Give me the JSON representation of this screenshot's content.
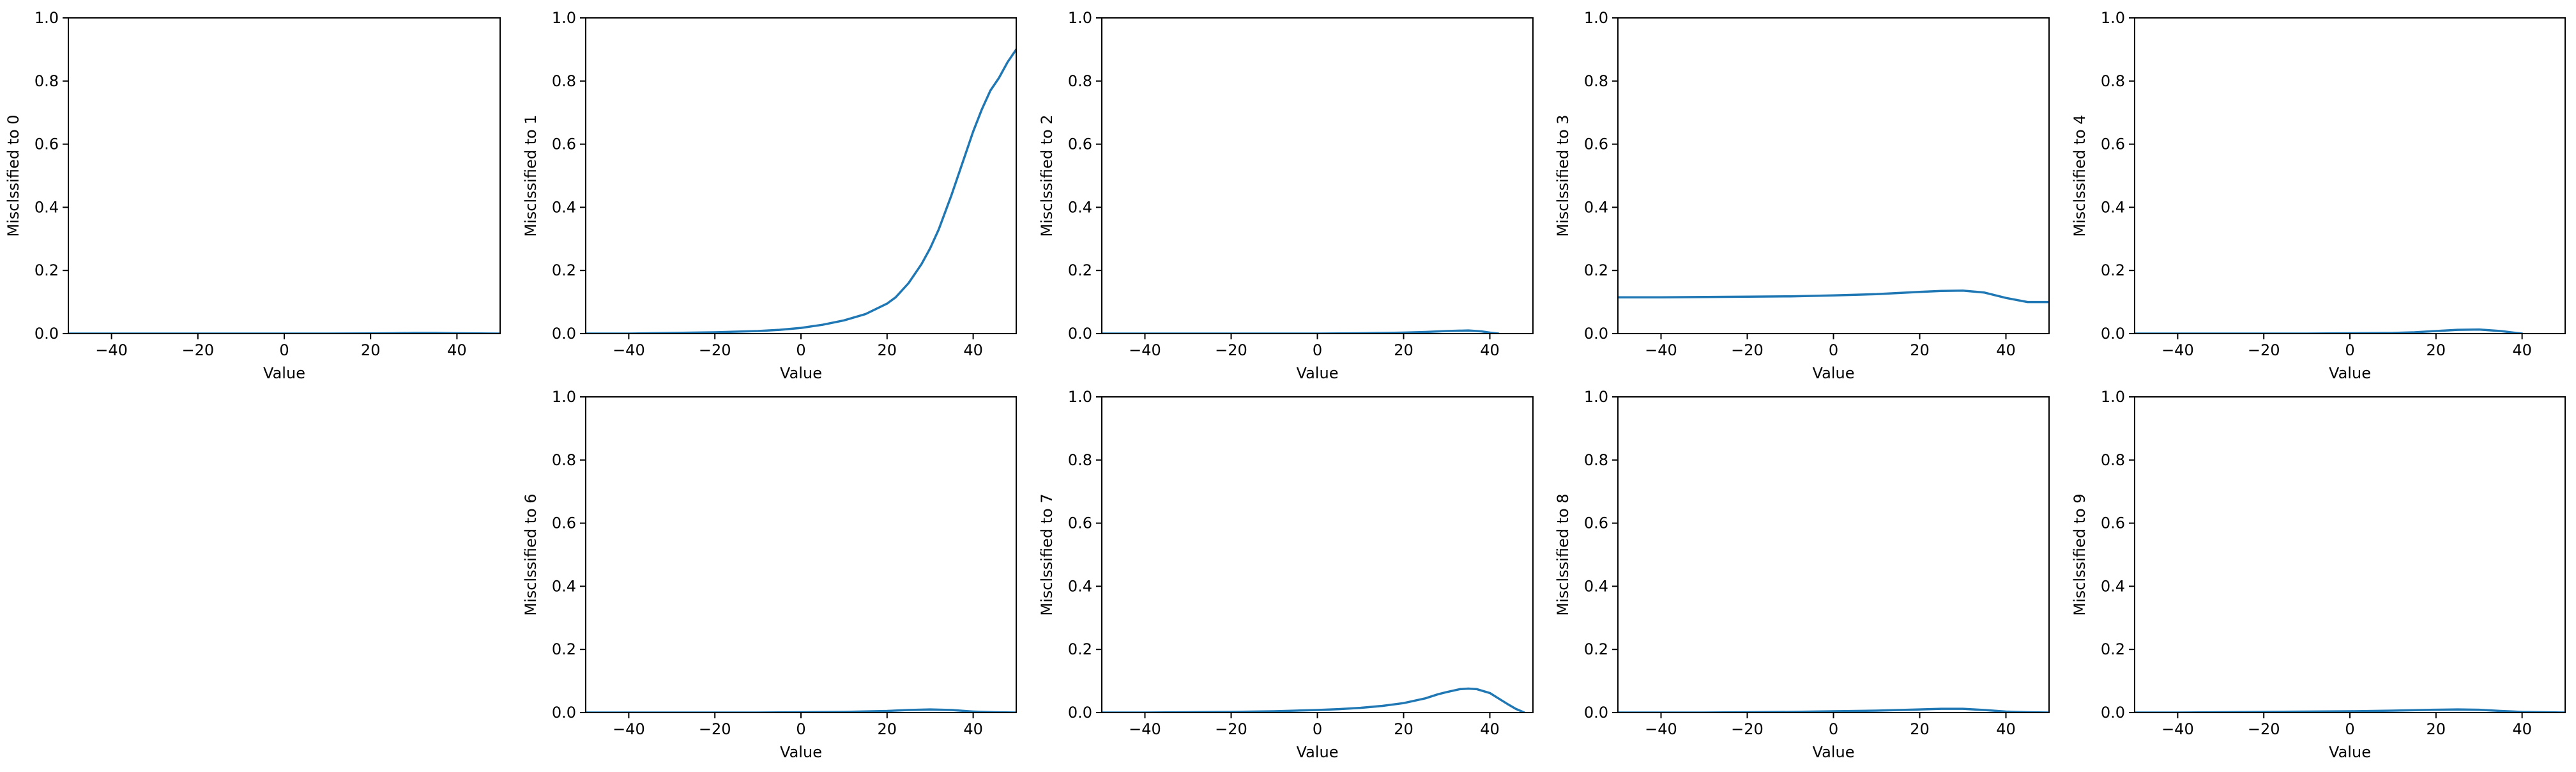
{
  "colors": {
    "series": "#1f77b4",
    "axes": "#000000",
    "background": "#ffffff"
  },
  "chart_data": [
    {
      "type": "line",
      "xlabel": "Value",
      "ylabel": "Misclssified to 0",
      "xlim": [
        -50,
        50
      ],
      "ylim": [
        0,
        1
      ],
      "xticks": [
        -40,
        -20,
        0,
        20,
        40
      ],
      "yticks": [
        0.0,
        0.2,
        0.4,
        0.6,
        0.8,
        1.0
      ],
      "x": [
        -50,
        -40,
        -30,
        -20,
        -10,
        0,
        10,
        20,
        25,
        30,
        35,
        40,
        45,
        50
      ],
      "y": [
        0.0,
        0.0,
        0.0,
        0.0,
        0.0,
        0.0,
        0.0,
        0.0005,
        0.001,
        0.002,
        0.002,
        0.001,
        0.0005,
        0.0
      ]
    },
    {
      "type": "line",
      "xlabel": "Value",
      "ylabel": "Misclssified to 1",
      "xlim": [
        -50,
        50
      ],
      "ylim": [
        0,
        1
      ],
      "xticks": [
        -40,
        -20,
        0,
        20,
        40
      ],
      "yticks": [
        0.0,
        0.2,
        0.4,
        0.6,
        0.8,
        1.0
      ],
      "x": [
        -50,
        -40,
        -30,
        -20,
        -10,
        -5,
        0,
        5,
        10,
        15,
        20,
        22,
        25,
        28,
        30,
        32,
        35,
        38,
        40,
        42,
        44,
        46,
        48,
        50
      ],
      "y": [
        0.0,
        0.0,
        0.002,
        0.004,
        0.008,
        0.012,
        0.018,
        0.028,
        0.042,
        0.062,
        0.095,
        0.115,
        0.16,
        0.22,
        0.27,
        0.33,
        0.44,
        0.56,
        0.64,
        0.71,
        0.77,
        0.81,
        0.86,
        0.9
      ]
    },
    {
      "type": "line",
      "xlabel": "Value",
      "ylabel": "Misclssified to 2",
      "xlim": [
        -50,
        50
      ],
      "ylim": [
        0,
        1
      ],
      "xticks": [
        -40,
        -20,
        0,
        20,
        40
      ],
      "yticks": [
        0.0,
        0.2,
        0.4,
        0.6,
        0.8,
        1.0
      ],
      "x": [
        -50,
        -40,
        -30,
        -20,
        -10,
        0,
        10,
        20,
        25,
        30,
        35,
        38,
        40,
        42
      ],
      "y": [
        0.0,
        0.0,
        0.0,
        0.0,
        0.0,
        0.0,
        0.001,
        0.003,
        0.005,
        0.008,
        0.01,
        0.007,
        0.003,
        0.0
      ]
    },
    {
      "type": "line",
      "xlabel": "Value",
      "ylabel": "Misclssified to 3",
      "xlim": [
        -50,
        50
      ],
      "ylim": [
        0,
        1
      ],
      "xticks": [
        -40,
        -20,
        0,
        20,
        40
      ],
      "yticks": [
        0.0,
        0.2,
        0.4,
        0.6,
        0.8,
        1.0
      ],
      "x": [
        -50,
        -40,
        -30,
        -20,
        -10,
        0,
        10,
        20,
        25,
        30,
        35,
        40,
        45,
        50
      ],
      "y": [
        0.115,
        0.115,
        0.116,
        0.117,
        0.118,
        0.121,
        0.125,
        0.132,
        0.135,
        0.136,
        0.13,
        0.113,
        0.1,
        0.1
      ]
    },
    {
      "type": "line",
      "xlabel": "Value",
      "ylabel": "Misclssified to 4",
      "xlim": [
        -50,
        50
      ],
      "ylim": [
        0,
        1
      ],
      "xticks": [
        -40,
        -20,
        0,
        20,
        40
      ],
      "yticks": [
        0.0,
        0.2,
        0.4,
        0.6,
        0.8,
        1.0
      ],
      "x": [
        -50,
        -40,
        -30,
        -20,
        -10,
        0,
        10,
        15,
        20,
        25,
        30,
        35,
        38,
        40
      ],
      "y": [
        0.0,
        0.0,
        0.0,
        0.0,
        0.0,
        0.001,
        0.002,
        0.004,
        0.008,
        0.012,
        0.013,
        0.008,
        0.003,
        0.0
      ]
    },
    {
      "type": "line",
      "xlabel": "Value",
      "ylabel": "Misclssified to 6",
      "xlim": [
        -50,
        50
      ],
      "ylim": [
        0,
        1
      ],
      "xticks": [
        -40,
        -20,
        0,
        20,
        40
      ],
      "yticks": [
        0.0,
        0.2,
        0.4,
        0.6,
        0.8,
        1.0
      ],
      "x": [
        -50,
        -40,
        -30,
        -20,
        -10,
        0,
        10,
        20,
        25,
        30,
        35,
        40,
        45,
        50
      ],
      "y": [
        0.0,
        0.0,
        0.0,
        0.0,
        0.0,
        0.001,
        0.002,
        0.005,
        0.008,
        0.01,
        0.008,
        0.003,
        0.001,
        0.0
      ]
    },
    {
      "type": "line",
      "xlabel": "Value",
      "ylabel": "Misclssified to 7",
      "xlim": [
        -50,
        50
      ],
      "ylim": [
        0,
        1
      ],
      "xticks": [
        -40,
        -20,
        0,
        20,
        40
      ],
      "yticks": [
        0.0,
        0.2,
        0.4,
        0.6,
        0.8,
        1.0
      ],
      "x": [
        -50,
        -40,
        -30,
        -20,
        -10,
        0,
        5,
        10,
        15,
        20,
        25,
        28,
        30,
        33,
        35,
        37,
        40,
        42,
        44,
        46,
        48
      ],
      "y": [
        0.0,
        0.0,
        0.001,
        0.002,
        0.004,
        0.008,
        0.011,
        0.015,
        0.021,
        0.03,
        0.045,
        0.058,
        0.065,
        0.074,
        0.076,
        0.074,
        0.062,
        0.045,
        0.028,
        0.012,
        0.0
      ]
    },
    {
      "type": "line",
      "xlabel": "Value",
      "ylabel": "Misclssified to 8",
      "xlim": [
        -50,
        50
      ],
      "ylim": [
        0,
        1
      ],
      "xticks": [
        -40,
        -20,
        0,
        20,
        40
      ],
      "yticks": [
        0.0,
        0.2,
        0.4,
        0.6,
        0.8,
        1.0
      ],
      "x": [
        -50,
        -40,
        -30,
        -20,
        -10,
        0,
        10,
        20,
        25,
        30,
        35,
        40,
        45,
        50
      ],
      "y": [
        0.0,
        0.0,
        0.0,
        0.001,
        0.002,
        0.004,
        0.006,
        0.01,
        0.012,
        0.012,
        0.008,
        0.003,
        0.001,
        0.0
      ]
    },
    {
      "type": "line",
      "xlabel": "Value",
      "ylabel": "Misclssified to 9",
      "xlim": [
        -50,
        50
      ],
      "ylim": [
        0,
        1
      ],
      "xticks": [
        -40,
        -20,
        0,
        20,
        40
      ],
      "yticks": [
        0.0,
        0.2,
        0.4,
        0.6,
        0.8,
        1.0
      ],
      "x": [
        -50,
        -40,
        -30,
        -20,
        -10,
        0,
        10,
        20,
        25,
        30,
        35,
        40,
        45,
        50
      ],
      "y": [
        0.0,
        0.0,
        0.001,
        0.002,
        0.003,
        0.004,
        0.006,
        0.009,
        0.01,
        0.009,
        0.005,
        0.002,
        0.001,
        0.0
      ]
    }
  ]
}
